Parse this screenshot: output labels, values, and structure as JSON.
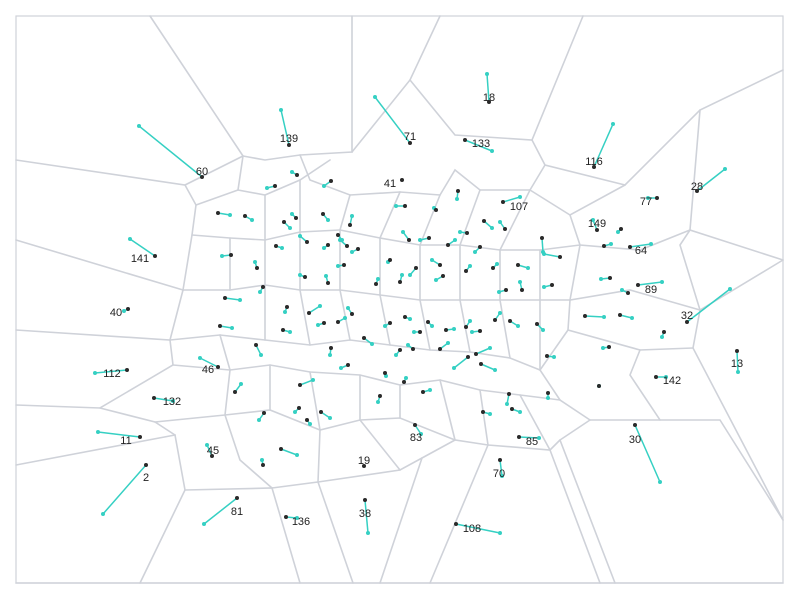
{
  "colors": {
    "background": "#ffffff",
    "cell_edge": "#cfd2d9",
    "link": "#35d0c3",
    "point": "#2a2a2a"
  },
  "labels": [
    "18",
    "139",
    "71",
    "133",
    "60",
    "116",
    "41",
    "107",
    "28",
    "77",
    "149",
    "141",
    "64",
    "89",
    "40",
    "32",
    "13",
    "112",
    "46",
    "142",
    "132",
    "11",
    "83",
    "85",
    "30",
    "45",
    "19",
    "70",
    "2",
    "81",
    "38",
    "136",
    "108"
  ]
}
